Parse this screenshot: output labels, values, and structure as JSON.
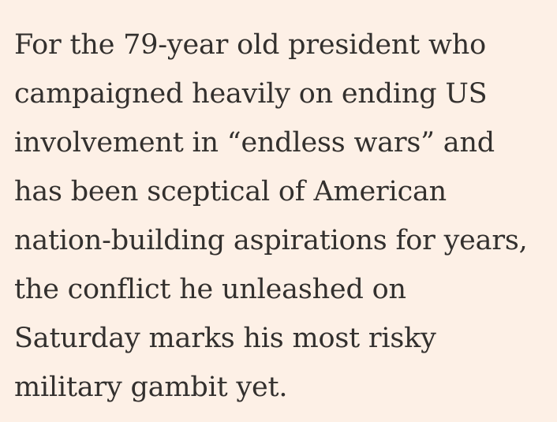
{
  "article": {
    "paragraph_lines": [
      "For the 79-year old president who",
      "campaigned heavily on ending US",
      "involvement in “endless wars” and",
      "has been sceptical of American",
      "nation-building aspirations for years,",
      "the conflict he unleashed on",
      "Saturday marks his most risky",
      "military gambit yet."
    ]
  }
}
